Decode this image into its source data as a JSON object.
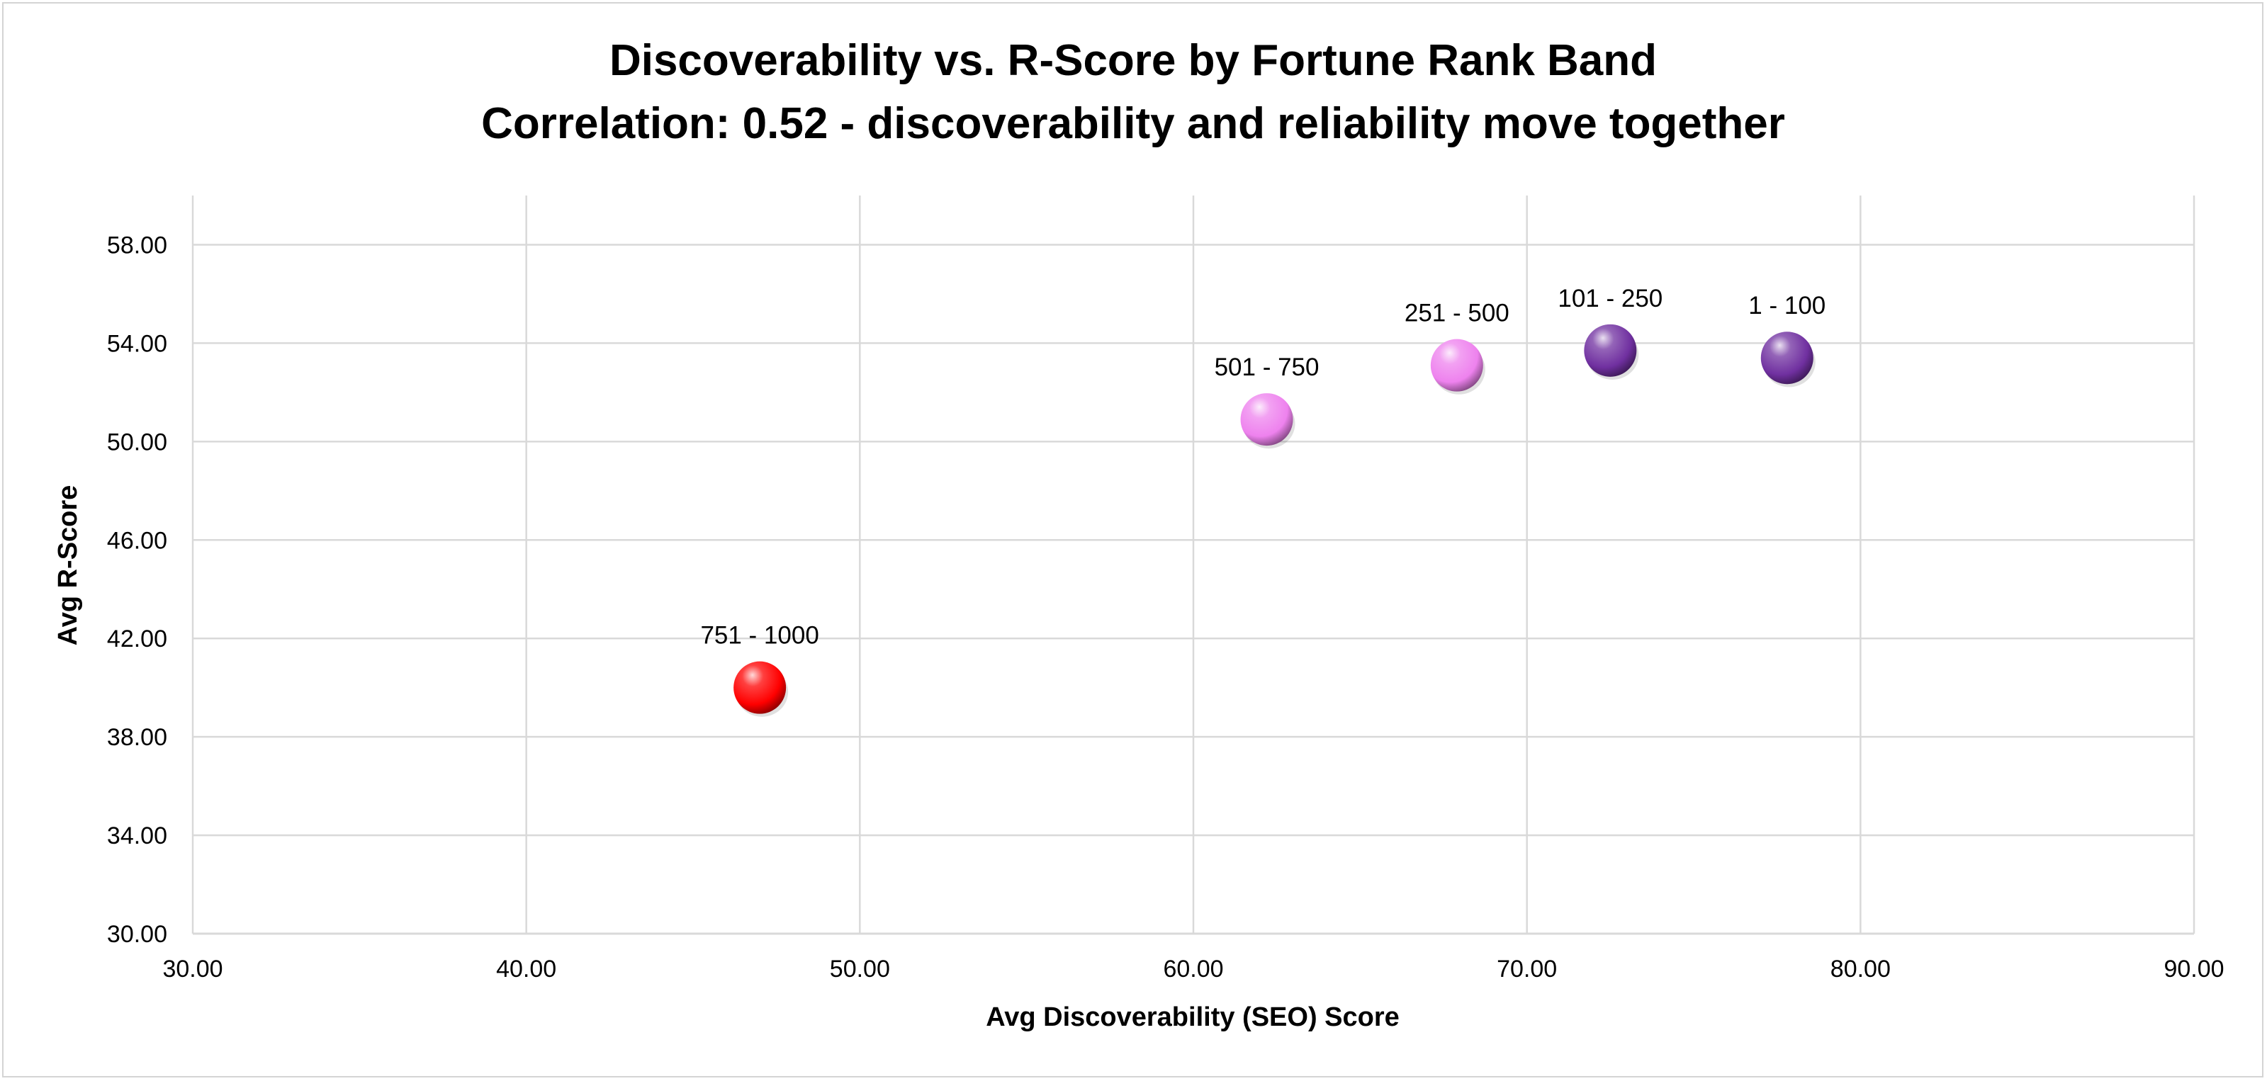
{
  "chart_data": {
    "type": "scatter",
    "title": "Discoverability vs. R-Score by Fortune Rank Band",
    "subtitle": "Correlation: 0.52 -  discoverability and reliability move together",
    "xlabel": "Avg Discoverability (SEO) Score",
    "ylabel": "Avg R-Score",
    "xlim": [
      30,
      90
    ],
    "ylim": [
      30,
      60
    ],
    "x_ticks": [
      "30.00",
      "40.00",
      "50.00",
      "60.00",
      "70.00",
      "80.00",
      "90.00"
    ],
    "y_ticks": [
      "30.00",
      "34.00",
      "38.00",
      "42.00",
      "46.00",
      "50.00",
      "54.00",
      "58.00"
    ],
    "grid": true,
    "legend": "none",
    "points": [
      {
        "label": "751 - 1000",
        "x": 47.0,
        "y": 40.0,
        "color": "#ff0000"
      },
      {
        "label": "501 - 750",
        "x": 62.2,
        "y": 50.9,
        "color": "#ee82ee"
      },
      {
        "label": "251 - 500",
        "x": 67.9,
        "y": 53.1,
        "color": "#ee82ee"
      },
      {
        "label": "101 - 250",
        "x": 72.5,
        "y": 53.7,
        "color": "#7030a0"
      },
      {
        "label": "1 - 100",
        "x": 77.8,
        "y": 53.4,
        "color": "#7030a0"
      }
    ]
  }
}
